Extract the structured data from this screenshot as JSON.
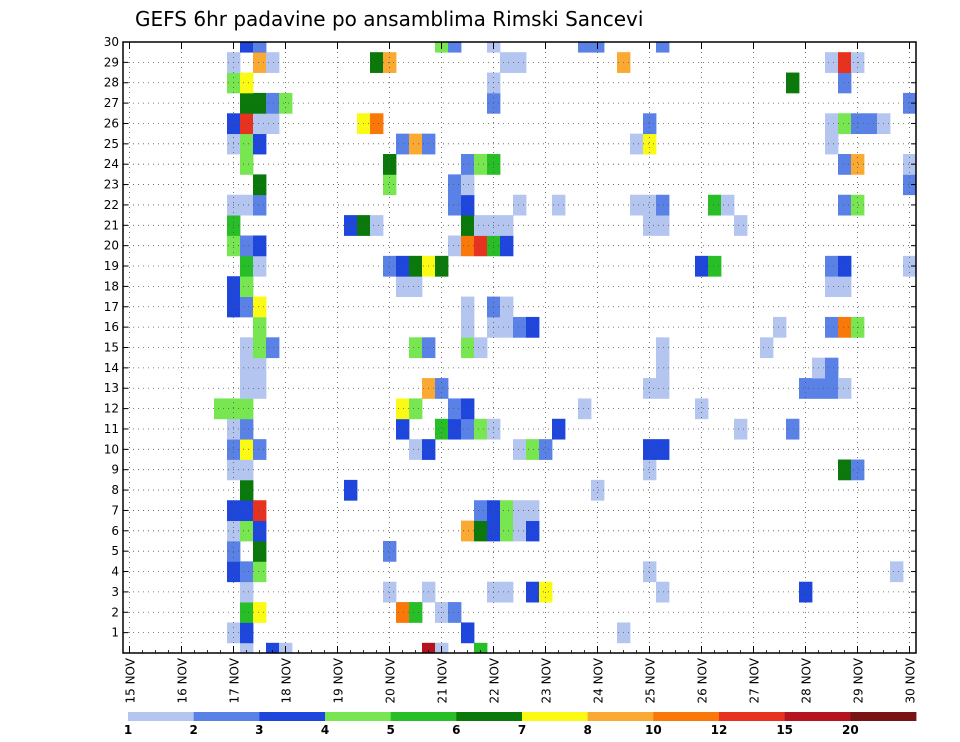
{
  "chart_data": {
    "type": "heatmap",
    "title": "GEFS 6hr padavine po ansamblima Rimski Sancevi",
    "xlabel": "",
    "ylabel": "",
    "x_tick_labels": [
      "15 NOV",
      "16 NOV",
      "17 NOV",
      "18 NOV",
      "19 NOV",
      "20 NOV",
      "21 NOV",
      "22 NOV",
      "23 NOV",
      "24 NOV",
      "25 NOV",
      "26 NOV",
      "27 NOV",
      "28 NOV",
      "29 NOV",
      "30 NOV"
    ],
    "y_tick_labels": [
      "1",
      "2",
      "3",
      "4",
      "5",
      "6",
      "7",
      "8",
      "9",
      "10",
      "11",
      "12",
      "13",
      "14",
      "15",
      "16",
      "17",
      "18",
      "19",
      "20",
      "21",
      "22",
      "23",
      "24",
      "25",
      "26",
      "27",
      "28",
      "29",
      "30"
    ],
    "xlim": [
      0,
      61
    ],
    "ylim": [
      0,
      30
    ],
    "grid": true,
    "legend": "bottom",
    "colorbar": {
      "labels": [
        "1",
        "2",
        "3",
        "4",
        "5",
        "6",
        "7",
        "8",
        "10",
        "12",
        "15",
        "20"
      ],
      "colors": [
        "#b4c6f0",
        "#5a82e6",
        "#1e46dc",
        "#78e650",
        "#28be28",
        "#0a780a",
        "#fafa14",
        "#faaa32",
        "#fa780a",
        "#e6321e",
        "#b4141e",
        "#781414"
      ]
    },
    "cells": [
      [
        0,
        9,
        0
      ],
      [
        0,
        11,
        2
      ],
      [
        0,
        12,
        0
      ],
      [
        0,
        23,
        10
      ],
      [
        0,
        24,
        0
      ],
      [
        0,
        27,
        4
      ],
      [
        1,
        8,
        0
      ],
      [
        1,
        9,
        2
      ],
      [
        1,
        26,
        2
      ],
      [
        1,
        38,
        0
      ],
      [
        2,
        9,
        4
      ],
      [
        2,
        10,
        6
      ],
      [
        2,
        21,
        8
      ],
      [
        2,
        22,
        4
      ],
      [
        2,
        24,
        0
      ],
      [
        2,
        25,
        1
      ],
      [
        3,
        9,
        0
      ],
      [
        3,
        20,
        0
      ],
      [
        3,
        23,
        0
      ],
      [
        3,
        28,
        0
      ],
      [
        3,
        29,
        0
      ],
      [
        3,
        31,
        2
      ],
      [
        3,
        32,
        6
      ],
      [
        3,
        41,
        0
      ],
      [
        3,
        52,
        2
      ],
      [
        3,
        66,
        0
      ],
      [
        4,
        8,
        2
      ],
      [
        4,
        9,
        1
      ],
      [
        4,
        10,
        3
      ],
      [
        4,
        40,
        0
      ],
      [
        4,
        59,
        0
      ],
      [
        4,
        75,
        0
      ],
      [
        5,
        8,
        1
      ],
      [
        5,
        10,
        5
      ],
      [
        5,
        20,
        1
      ],
      [
        5,
        70,
        8
      ],
      [
        5,
        71,
        4
      ],
      [
        5,
        72,
        1
      ],
      [
        6,
        8,
        0
      ],
      [
        6,
        9,
        3
      ],
      [
        6,
        10,
        2
      ],
      [
        6,
        26,
        7
      ],
      [
        6,
        27,
        5
      ],
      [
        6,
        28,
        2
      ],
      [
        6,
        29,
        3
      ],
      [
        6,
        30,
        0
      ],
      [
        6,
        31,
        2
      ],
      [
        6,
        62,
        0
      ],
      [
        7,
        8,
        2
      ],
      [
        7,
        9,
        2
      ],
      [
        7,
        10,
        9
      ],
      [
        7,
        27,
        1
      ],
      [
        7,
        28,
        2
      ],
      [
        7,
        29,
        3
      ],
      [
        7,
        30,
        0
      ],
      [
        7,
        31,
        0
      ],
      [
        8,
        9,
        5
      ],
      [
        8,
        17,
        2
      ],
      [
        8,
        36,
        0
      ],
      [
        8,
        75,
        4
      ],
      [
        9,
        8,
        0
      ],
      [
        9,
        9,
        0
      ],
      [
        9,
        55,
        5
      ],
      [
        9,
        56,
        1
      ],
      [
        9,
        40,
        0
      ],
      [
        10,
        8,
        1
      ],
      [
        10,
        9,
        6
      ],
      [
        10,
        10,
        1
      ],
      [
        10,
        22,
        0
      ],
      [
        10,
        23,
        2
      ],
      [
        10,
        30,
        0
      ],
      [
        10,
        31,
        3
      ],
      [
        10,
        32,
        1
      ],
      [
        10,
        40,
        2
      ],
      [
        10,
        41,
        2
      ],
      [
        10,
        61,
        1
      ],
      [
        10,
        62,
        8
      ],
      [
        10,
        63,
        3
      ],
      [
        10,
        64,
        0
      ],
      [
        10,
        65,
        0
      ],
      [
        11,
        8,
        0
      ],
      [
        11,
        9,
        1
      ],
      [
        11,
        21,
        2
      ],
      [
        11,
        24,
        4
      ],
      [
        11,
        25,
        2
      ],
      [
        11,
        26,
        1
      ],
      [
        11,
        27,
        3
      ],
      [
        11,
        28,
        0
      ],
      [
        11,
        33,
        2
      ],
      [
        11,
        47,
        0
      ],
      [
        11,
        51,
        1
      ],
      [
        11,
        65,
        1
      ],
      [
        11,
        70,
        1
      ],
      [
        12,
        7,
        3
      ],
      [
        12,
        8,
        3
      ],
      [
        12,
        9,
        3
      ],
      [
        12,
        21,
        6
      ],
      [
        12,
        22,
        3
      ],
      [
        12,
        25,
        1
      ],
      [
        12,
        26,
        2
      ],
      [
        12,
        35,
        0
      ],
      [
        12,
        44,
        0
      ],
      [
        13,
        9,
        0
      ],
      [
        13,
        10,
        0
      ],
      [
        13,
        23,
        7
      ],
      [
        13,
        24,
        1
      ],
      [
        13,
        40,
        0
      ],
      [
        13,
        41,
        0
      ],
      [
        13,
        52,
        1
      ],
      [
        13,
        53,
        1
      ],
      [
        13,
        54,
        1
      ],
      [
        13,
        55,
        0
      ],
      [
        14,
        9,
        0
      ],
      [
        14,
        10,
        0
      ],
      [
        14,
        41,
        0
      ],
      [
        14,
        53,
        0
      ],
      [
        14,
        54,
        1
      ],
      [
        15,
        9,
        0
      ],
      [
        15,
        10,
        3
      ],
      [
        15,
        11,
        1
      ],
      [
        15,
        22,
        3
      ],
      [
        15,
        23,
        1
      ],
      [
        15,
        26,
        3
      ],
      [
        15,
        27,
        0
      ],
      [
        15,
        41,
        0
      ],
      [
        15,
        49,
        0
      ],
      [
        15,
        61,
        1
      ],
      [
        15,
        70,
        2
      ],
      [
        15,
        74,
        2
      ],
      [
        16,
        10,
        3
      ],
      [
        16,
        26,
        0
      ],
      [
        16,
        28,
        0
      ],
      [
        16,
        29,
        0
      ],
      [
        16,
        30,
        1
      ],
      [
        16,
        31,
        2
      ],
      [
        16,
        50,
        0
      ],
      [
        16,
        54,
        1
      ],
      [
        16,
        55,
        8
      ],
      [
        16,
        56,
        3
      ],
      [
        16,
        73,
        0
      ],
      [
        17,
        8,
        2
      ],
      [
        17,
        9,
        1
      ],
      [
        17,
        10,
        6
      ],
      [
        17,
        26,
        0
      ],
      [
        17,
        28,
        1
      ],
      [
        17,
        29,
        0
      ],
      [
        18,
        8,
        2
      ],
      [
        18,
        9,
        3
      ],
      [
        18,
        21,
        0
      ],
      [
        18,
        22,
        0
      ],
      [
        18,
        54,
        0
      ],
      [
        18,
        55,
        0
      ],
      [
        19,
        9,
        4
      ],
      [
        19,
        10,
        0
      ],
      [
        19,
        20,
        1
      ],
      [
        19,
        21,
        2
      ],
      [
        19,
        22,
        5
      ],
      [
        19,
        23,
        6
      ],
      [
        19,
        24,
        5
      ],
      [
        19,
        44,
        2
      ],
      [
        19,
        45,
        4
      ],
      [
        19,
        54,
        1
      ],
      [
        19,
        55,
        2
      ],
      [
        19,
        60,
        0
      ],
      [
        20,
        8,
        3
      ],
      [
        20,
        9,
        1
      ],
      [
        20,
        10,
        2
      ],
      [
        20,
        25,
        0
      ],
      [
        20,
        26,
        8
      ],
      [
        20,
        27,
        9
      ],
      [
        20,
        28,
        4
      ],
      [
        20,
        29,
        2
      ],
      [
        21,
        8,
        4
      ],
      [
        21,
        17,
        2
      ],
      [
        21,
        18,
        5
      ],
      [
        21,
        19,
        0
      ],
      [
        21,
        26,
        5
      ],
      [
        21,
        27,
        0
      ],
      [
        21,
        28,
        0
      ],
      [
        21,
        29,
        0
      ],
      [
        21,
        40,
        0
      ],
      [
        21,
        41,
        0
      ],
      [
        21,
        47,
        0
      ],
      [
        22,
        8,
        0
      ],
      [
        22,
        9,
        0
      ],
      [
        22,
        10,
        1
      ],
      [
        22,
        25,
        1
      ],
      [
        22,
        26,
        2
      ],
      [
        22,
        30,
        0
      ],
      [
        22,
        33,
        0
      ],
      [
        22,
        39,
        0
      ],
      [
        22,
        40,
        0
      ],
      [
        22,
        41,
        1
      ],
      [
        22,
        45,
        4
      ],
      [
        22,
        46,
        0
      ],
      [
        22,
        55,
        1
      ],
      [
        22,
        56,
        3
      ],
      [
        23,
        10,
        5
      ],
      [
        23,
        20,
        3
      ],
      [
        23,
        25,
        1
      ],
      [
        23,
        26,
        0
      ],
      [
        23,
        60,
        1
      ],
      [
        23,
        64,
        1
      ],
      [
        24,
        9,
        3
      ],
      [
        24,
        20,
        5
      ],
      [
        24,
        26,
        1
      ],
      [
        24,
        27,
        3
      ],
      [
        24,
        28,
        4
      ],
      [
        24,
        55,
        1
      ],
      [
        24,
        56,
        7
      ],
      [
        24,
        60,
        0
      ],
      [
        24,
        61,
        0
      ],
      [
        24,
        62,
        0
      ],
      [
        25,
        8,
        0
      ],
      [
        25,
        9,
        3
      ],
      [
        25,
        10,
        2
      ],
      [
        25,
        21,
        1
      ],
      [
        25,
        22,
        7
      ],
      [
        25,
        23,
        1
      ],
      [
        25,
        39,
        0
      ],
      [
        25,
        40,
        6
      ],
      [
        25,
        54,
        0
      ],
      [
        25,
        68,
        4
      ],
      [
        25,
        69,
        10
      ],
      [
        25,
        70,
        2
      ],
      [
        26,
        8,
        2
      ],
      [
        26,
        9,
        9
      ],
      [
        26,
        10,
        0
      ],
      [
        26,
        11,
        0
      ],
      [
        26,
        18,
        6
      ],
      [
        26,
        19,
        8
      ],
      [
        26,
        40,
        1
      ],
      [
        26,
        54,
        0
      ],
      [
        26,
        55,
        3
      ],
      [
        26,
        56,
        1
      ],
      [
        26,
        57,
        1
      ],
      [
        26,
        58,
        0
      ],
      [
        26,
        70,
        2
      ],
      [
        26,
        71,
        2
      ],
      [
        26,
        72,
        0
      ],
      [
        27,
        9,
        5
      ],
      [
        27,
        10,
        5
      ],
      [
        27,
        11,
        1
      ],
      [
        27,
        12,
        3
      ],
      [
        27,
        28,
        1
      ],
      [
        27,
        60,
        1
      ],
      [
        28,
        8,
        3
      ],
      [
        28,
        9,
        6
      ],
      [
        28,
        28,
        0
      ],
      [
        28,
        51,
        5
      ],
      [
        28,
        55,
        1
      ],
      [
        28,
        64,
        8
      ],
      [
        28,
        65,
        0
      ],
      [
        29,
        8,
        0
      ],
      [
        29,
        10,
        7
      ],
      [
        29,
        11,
        0
      ],
      [
        29,
        19,
        5
      ],
      [
        29,
        20,
        7
      ],
      [
        29,
        29,
        0
      ],
      [
        29,
        30,
        0
      ],
      [
        29,
        38,
        7
      ],
      [
        29,
        54,
        0
      ],
      [
        29,
        55,
        9
      ],
      [
        29,
        56,
        0
      ],
      [
        30,
        9,
        2
      ],
      [
        30,
        10,
        1
      ],
      [
        30,
        24,
        3
      ],
      [
        30,
        25,
        1
      ],
      [
        30,
        28,
        0
      ],
      [
        30,
        35,
        1
      ],
      [
        30,
        36,
        1
      ],
      [
        30,
        41,
        1
      ]
    ]
  }
}
